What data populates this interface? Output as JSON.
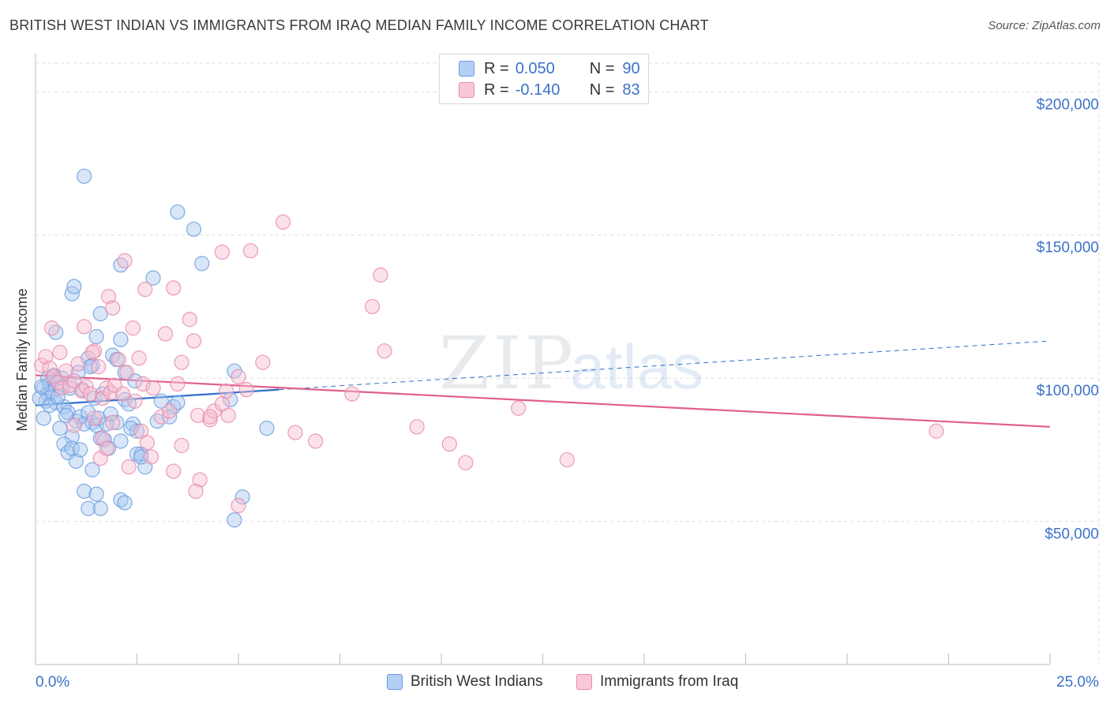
{
  "title": "BRITISH WEST INDIAN VS IMMIGRANTS FROM IRAQ MEDIAN FAMILY INCOME CORRELATION CHART",
  "source": "Source: ZipAtlas.com",
  "watermark": {
    "zip": "ZIP",
    "atlas": "atlas"
  },
  "legend": {
    "series1": {
      "r_label": "R =",
      "r_value": "0.050",
      "n_label": "N =",
      "n_value": "90"
    },
    "series2": {
      "r_label": "R =",
      "r_value": "-0.140",
      "n_label": "N =",
      "n_value": "83"
    }
  },
  "bottom_legend": {
    "series1": "British West Indians",
    "series2": "Immigrants from Iraq"
  },
  "colors": {
    "blue_fill": "#a8c8f0",
    "blue_stroke": "#6a9de0",
    "blue_line": "#2f6fcc",
    "pink_fill": "#f7bfd0",
    "pink_stroke": "#e98aab",
    "pink_line": "#e0608a",
    "tick_text": "#3b72c8",
    "grid": "#dddddd"
  },
  "chart_data": {
    "type": "scatter",
    "title": "BRITISH WEST INDIAN VS IMMIGRANTS FROM IRAQ MEDIAN FAMILY INCOME CORRELATION CHART",
    "xlabel": "",
    "ylabel": "Median Family Income",
    "xlim": [
      0,
      25
    ],
    "ylim": [
      0,
      210000
    ],
    "x_tick_labels": [
      "0.0%",
      "25.0%"
    ],
    "y_ticks": [
      50000,
      100000,
      150000,
      200000
    ],
    "y_tick_labels": [
      "$50,000",
      "$100,000",
      "$150,000",
      "$200,000"
    ],
    "series": [
      {
        "name": "British West Indians",
        "r": 0.05,
        "n": 90,
        "trend": {
          "x": [
            0,
            6.0
          ],
          "y": [
            90500,
            96000
          ],
          "dashed_to": [
            25,
            113000
          ]
        },
        "points": [
          [
            0.2,
            96500
          ],
          [
            0.3,
            94500
          ],
          [
            0.25,
            92000
          ],
          [
            0.4,
            95000
          ],
          [
            0.35,
            98000
          ],
          [
            0.5,
            99500
          ],
          [
            0.6,
            97000
          ],
          [
            0.2,
            86000
          ],
          [
            0.5,
            91500
          ],
          [
            0.7,
            90000
          ],
          [
            0.8,
            88000
          ],
          [
            0.6,
            82500
          ],
          [
            0.9,
            79500
          ],
          [
            1.0,
            85000
          ],
          [
            1.1,
            86500
          ],
          [
            1.2,
            84000
          ],
          [
            1.3,
            88000
          ],
          [
            1.4,
            84500
          ],
          [
            1.5,
            83500
          ],
          [
            1.6,
            79000
          ],
          [
            1.7,
            78500
          ],
          [
            1.8,
            75500
          ],
          [
            2.0,
            84500
          ],
          [
            2.1,
            78000
          ],
          [
            2.2,
            92500
          ],
          [
            2.3,
            91000
          ],
          [
            2.4,
            84000
          ],
          [
            2.5,
            81500
          ],
          [
            2.6,
            73500
          ],
          [
            2.7,
            69000
          ],
          [
            3.1,
            92000
          ],
          [
            3.4,
            90000
          ],
          [
            3.5,
            91500
          ],
          [
            0.7,
            77000
          ],
          [
            0.8,
            74000
          ],
          [
            0.9,
            75500
          ],
          [
            1.0,
            71000
          ],
          [
            1.1,
            75000
          ],
          [
            1.2,
            60500
          ],
          [
            1.3,
            54500
          ],
          [
            1.4,
            68000
          ],
          [
            1.5,
            59500
          ],
          [
            1.6,
            54500
          ],
          [
            2.1,
            57500
          ],
          [
            2.2,
            56500
          ],
          [
            2.5,
            73500
          ],
          [
            2.6,
            72500
          ],
          [
            0.9,
            129500
          ],
          [
            0.95,
            132000
          ],
          [
            1.3,
            107000
          ],
          [
            1.4,
            104500
          ],
          [
            1.5,
            114500
          ],
          [
            1.6,
            122500
          ],
          [
            1.9,
            108000
          ],
          [
            2.0,
            106500
          ],
          [
            2.1,
            113500
          ],
          [
            2.2,
            102000
          ],
          [
            1.2,
            170500
          ],
          [
            3.5,
            158000
          ],
          [
            3.9,
            152000
          ],
          [
            4.1,
            140000
          ],
          [
            2.1,
            139500
          ],
          [
            2.9,
            135000
          ],
          [
            4.9,
            102500
          ],
          [
            4.8,
            92500
          ],
          [
            5.7,
            82500
          ],
          [
            5.1,
            58500
          ],
          [
            4.9,
            50500
          ],
          [
            0.3,
            100000
          ],
          [
            0.45,
            101000
          ],
          [
            0.1,
            93000
          ],
          [
            0.15,
            97000
          ],
          [
            0.35,
            90500
          ],
          [
            0.55,
            93500
          ],
          [
            0.65,
            100000
          ],
          [
            0.75,
            87000
          ],
          [
            0.85,
            96500
          ],
          [
            1.05,
            102000
          ],
          [
            1.15,
            96000
          ],
          [
            1.35,
            104000
          ],
          [
            1.45,
            93000
          ],
          [
            1.55,
            86000
          ],
          [
            1.65,
            94500
          ],
          [
            1.75,
            84000
          ],
          [
            1.85,
            87500
          ],
          [
            2.35,
            82500
          ],
          [
            2.45,
            99000
          ],
          [
            3.0,
            85000
          ],
          [
            3.3,
            86500
          ],
          [
            0.5,
            116000
          ]
        ]
      },
      {
        "name": "Immigrants from Iraq",
        "r": -0.14,
        "n": 83,
        "trend": {
          "x": [
            0,
            25
          ],
          "y": [
            101000,
            83000
          ]
        },
        "points": [
          [
            0.15,
            104500
          ],
          [
            0.25,
            107500
          ],
          [
            0.35,
            103500
          ],
          [
            0.45,
            100500
          ],
          [
            0.55,
            98500
          ],
          [
            0.65,
            96500
          ],
          [
            0.75,
            102500
          ],
          [
            0.85,
            97500
          ],
          [
            0.95,
            99000
          ],
          [
            1.05,
            105000
          ],
          [
            1.15,
            95500
          ],
          [
            1.25,
            97000
          ],
          [
            1.35,
            94500
          ],
          [
            1.45,
            109500
          ],
          [
            1.55,
            104000
          ],
          [
            1.65,
            93000
          ],
          [
            1.75,
            96500
          ],
          [
            1.85,
            95000
          ],
          [
            1.95,
            97500
          ],
          [
            2.05,
            106500
          ],
          [
            2.15,
            94500
          ],
          [
            2.25,
            102000
          ],
          [
            2.45,
            92000
          ],
          [
            2.55,
            107000
          ],
          [
            2.65,
            98000
          ],
          [
            2.9,
            96500
          ],
          [
            3.1,
            86500
          ],
          [
            3.2,
            115500
          ],
          [
            3.5,
            98000
          ],
          [
            3.6,
            105500
          ],
          [
            3.8,
            120500
          ],
          [
            3.9,
            113000
          ],
          [
            4.0,
            87000
          ],
          [
            4.3,
            85500
          ],
          [
            4.4,
            88500
          ],
          [
            4.6,
            91000
          ],
          [
            4.75,
            87000
          ],
          [
            5.0,
            100500
          ],
          [
            5.2,
            96000
          ],
          [
            5.6,
            105500
          ],
          [
            0.4,
            117500
          ],
          [
            0.6,
            109000
          ],
          [
            1.2,
            118000
          ],
          [
            1.4,
            109000
          ],
          [
            1.8,
            128500
          ],
          [
            1.9,
            124500
          ],
          [
            2.2,
            141000
          ],
          [
            2.4,
            117500
          ],
          [
            2.7,
            131000
          ],
          [
            3.4,
            131500
          ],
          [
            4.6,
            144000
          ],
          [
            5.3,
            144500
          ],
          [
            6.1,
            154500
          ],
          [
            6.4,
            81000
          ],
          [
            6.9,
            78000
          ],
          [
            7.8,
            94500
          ],
          [
            8.3,
            125000
          ],
          [
            8.5,
            136000
          ],
          [
            8.6,
            109500
          ],
          [
            9.4,
            83000
          ],
          [
            10.2,
            77000
          ],
          [
            10.6,
            70500
          ],
          [
            11.9,
            89500
          ],
          [
            13.1,
            71500
          ],
          [
            22.2,
            81500
          ],
          [
            1.6,
            72000
          ],
          [
            1.65,
            79000
          ],
          [
            1.75,
            75500
          ],
          [
            2.3,
            69000
          ],
          [
            2.6,
            81500
          ],
          [
            2.75,
            77500
          ],
          [
            2.85,
            72500
          ],
          [
            3.4,
            67500
          ],
          [
            3.6,
            76500
          ],
          [
            4.05,
            64500
          ],
          [
            3.95,
            60500
          ],
          [
            5.0,
            55500
          ],
          [
            4.3,
            86500
          ],
          [
            3.3,
            88500
          ],
          [
            0.95,
            83500
          ],
          [
            1.45,
            86000
          ],
          [
            1.9,
            84500
          ],
          [
            4.7,
            95500
          ]
        ]
      }
    ]
  }
}
